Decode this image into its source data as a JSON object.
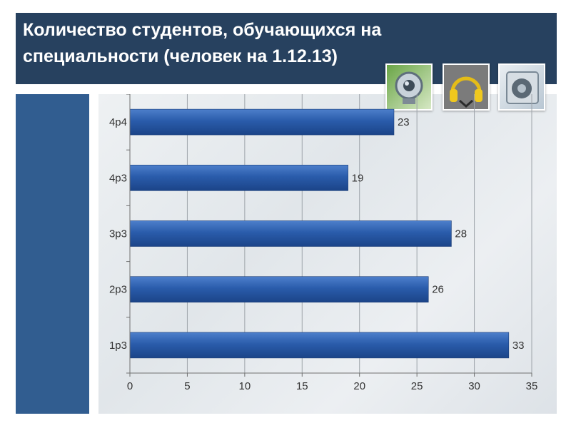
{
  "slide": {
    "title_line1": "Количество студентов, обучающихся на",
    "title_line2": "специальности (человек на 1.12.13)",
    "icons": [
      "webcam-icon",
      "headphones-icon",
      "speaker-icon"
    ],
    "colors": {
      "header": "#27415f",
      "sidebar": "#315d90",
      "bar": "#2a5cab"
    }
  },
  "chart_data": {
    "type": "bar",
    "orientation": "horizontal",
    "categories": [
      "1р3",
      "2р3",
      "3р3",
      "4р3",
      "4р4"
    ],
    "values": [
      33,
      26,
      28,
      19,
      23
    ],
    "xlim": [
      0,
      35
    ],
    "xticks": [
      0,
      5,
      10,
      15,
      20,
      25,
      30,
      35
    ],
    "grid": true,
    "data_labels": true,
    "title": "",
    "xlabel": "",
    "ylabel": ""
  }
}
